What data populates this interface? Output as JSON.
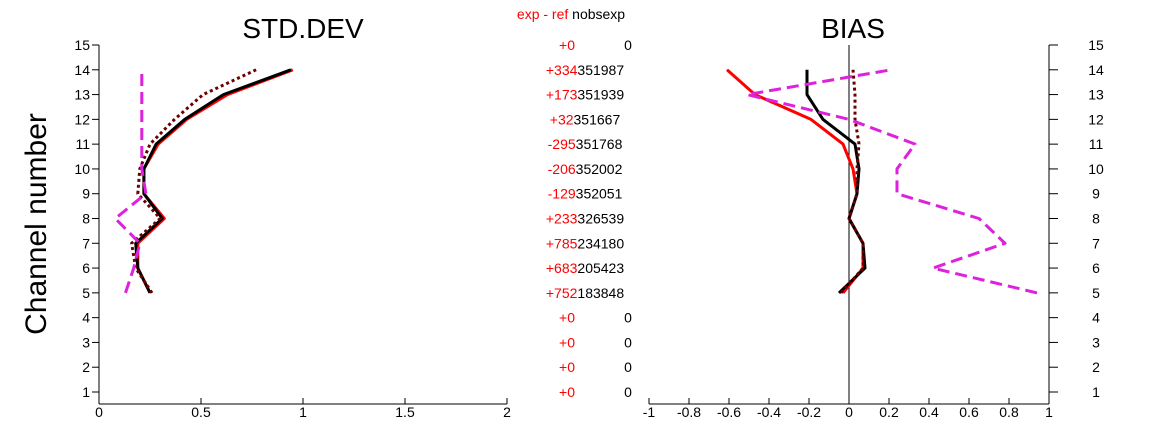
{
  "chart_data": [
    {
      "type": "line",
      "title": "STD.DEV",
      "ylabel": "Channel number",
      "xlim": [
        0,
        2
      ],
      "ylim": [
        1,
        15
      ],
      "x_ticks": [
        "0",
        "0.5",
        "1",
        "1.5",
        "2"
      ],
      "y_ticks": [
        "1",
        "2",
        "3",
        "4",
        "5",
        "6",
        "7",
        "8",
        "9",
        "10",
        "11",
        "12",
        "13",
        "14",
        "15"
      ],
      "series": [
        {
          "color": "#ff0000",
          "style": "solid",
          "y": [
            5,
            6,
            7,
            8,
            9,
            10,
            11,
            12,
            13,
            14
          ],
          "x": [
            0.25,
            0.19,
            0.19,
            0.32,
            0.22,
            0.22,
            0.29,
            0.43,
            0.63,
            0.95
          ]
        },
        {
          "color": "#000000",
          "style": "solid",
          "y": [
            5,
            6,
            7,
            8,
            9,
            10,
            11,
            12,
            13,
            14
          ],
          "x": [
            0.25,
            0.19,
            0.18,
            0.31,
            0.22,
            0.22,
            0.28,
            0.42,
            0.61,
            0.94
          ]
        },
        {
          "color": "#6b0000",
          "style": "dotted",
          "y": [
            5,
            6,
            7,
            8,
            9,
            10,
            11,
            12,
            13,
            14
          ],
          "x": [
            0.26,
            0.18,
            0.16,
            0.3,
            0.19,
            0.2,
            0.25,
            0.37,
            0.51,
            0.77
          ]
        },
        {
          "color": "#dd22dd",
          "style": "dashed",
          "y": [
            5,
            6,
            7,
            8,
            9,
            10,
            11,
            12,
            13,
            14
          ],
          "x": [
            0.13,
            0.17,
            0.2,
            0.08,
            0.23,
            0.21,
            0.21,
            0.21,
            0.21,
            0.21
          ]
        }
      ]
    },
    {
      "type": "line",
      "title": "BIAS",
      "xlim": [
        -1,
        1
      ],
      "ylim": [
        1,
        15
      ],
      "x_ticks": [
        "-1",
        "-0.8",
        "-0.6",
        "-0.4",
        "-0.2",
        "0",
        "0.2",
        "0.4",
        "0.6",
        "0.8",
        "1"
      ],
      "y_ticks": [
        "1",
        "2",
        "3",
        "4",
        "5",
        "6",
        "7",
        "8",
        "9",
        "10",
        "11",
        "12",
        "13",
        "14",
        "15"
      ],
      "series": [
        {
          "color": "#ff0000",
          "style": "solid",
          "y": [
            5,
            6,
            7,
            8,
            9,
            10,
            11,
            12,
            13,
            14
          ],
          "x": [
            -0.03,
            0.07,
            0.07,
            0.0,
            0.04,
            0.02,
            -0.03,
            -0.19,
            -0.47,
            -0.61
          ]
        },
        {
          "color": "#000000",
          "style": "solid",
          "y": [
            5,
            6,
            7,
            8,
            9,
            10,
            11,
            12,
            13,
            14
          ],
          "x": [
            -0.05,
            0.08,
            0.07,
            0.0,
            0.04,
            0.05,
            0.03,
            -0.13,
            -0.21,
            -0.21
          ]
        },
        {
          "color": "#6b0000",
          "style": "dotted",
          "y": [
            5,
            6,
            7,
            8,
            9,
            10,
            11,
            12,
            13,
            14
          ],
          "x": [
            -0.04,
            0.07,
            0.07,
            0.0,
            0.04,
            0.04,
            0.05,
            0.03,
            0.03,
            0.02
          ]
        },
        {
          "color": "#dd22dd",
          "style": "dashed",
          "y": [
            5,
            6,
            7,
            8,
            9,
            10,
            11,
            12,
            13,
            14
          ],
          "x": [
            0.94,
            0.42,
            0.78,
            0.65,
            0.24,
            0.24,
            0.33,
            0.0,
            -0.51,
            0.21
          ]
        }
      ]
    }
  ],
  "center_table": {
    "header_diff": "exp - ref",
    "header_nobs": "nobsexp",
    "rows": [
      {
        "channel": 15,
        "diff": "+0",
        "nobs": "0"
      },
      {
        "channel": 14,
        "diff": "+334",
        "nobs": "351987"
      },
      {
        "channel": 13,
        "diff": "+173",
        "nobs": "351939"
      },
      {
        "channel": 12,
        "diff": "+32",
        "nobs": "351667"
      },
      {
        "channel": 11,
        "diff": "-295",
        "nobs": "351768"
      },
      {
        "channel": 10,
        "diff": "-206",
        "nobs": "352002"
      },
      {
        "channel": 9,
        "diff": "-129",
        "nobs": "352051"
      },
      {
        "channel": 8,
        "diff": "+233",
        "nobs": "326539"
      },
      {
        "channel": 7,
        "diff": "+785",
        "nobs": "234180"
      },
      {
        "channel": 6,
        "diff": "+683",
        "nobs": "205423"
      },
      {
        "channel": 5,
        "diff": "+752",
        "nobs": "183848"
      },
      {
        "channel": 4,
        "diff": "+0",
        "nobs": "0"
      },
      {
        "channel": 3,
        "diff": "+0",
        "nobs": "0"
      },
      {
        "channel": 2,
        "diff": "+0",
        "nobs": "0"
      },
      {
        "channel": 1,
        "diff": "+0",
        "nobs": "0"
      }
    ]
  },
  "colors": {
    "diff_text": "#ff0000",
    "axis": "#000000"
  }
}
